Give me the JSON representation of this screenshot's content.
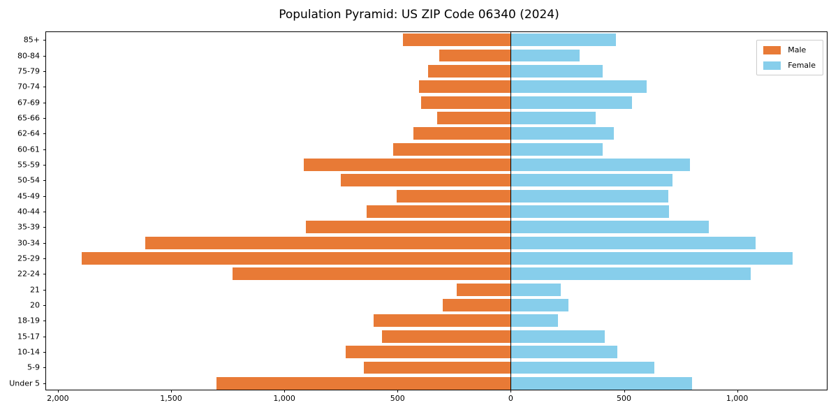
{
  "header": {
    "title": "Population Pyramid: US ZIP Code 06340 (2024)"
  },
  "legend": {
    "male_label": "Male",
    "female_label": "Female"
  },
  "colors": {
    "male": "#e87a36",
    "female": "#87ceeb",
    "axis": "#000000",
    "legend_border": "#cccccc"
  },
  "chart_data": {
    "type": "bar",
    "subtype": "population-pyramid",
    "title": "Population Pyramid: US ZIP Code 06340 (2024)",
    "xlabel": "",
    "ylabel": "",
    "grid": false,
    "zero_line": true,
    "legend_position": "upper right",
    "xlim": [
      -2052,
      1402
    ],
    "categories_top_to_bottom": [
      "85+",
      "80-84",
      "75-79",
      "70-74",
      "67-69",
      "65-66",
      "62-64",
      "60-61",
      "55-59",
      "50-54",
      "45-49",
      "40-44",
      "35-39",
      "30-34",
      "25-29",
      "22-24",
      "21",
      "20",
      "18-19",
      "15-17",
      "10-14",
      "5-9",
      "Under 5"
    ],
    "series": [
      {
        "name": "Male",
        "side": "left",
        "color": "#e87a36",
        "values": [
          475,
          315,
          365,
          405,
          395,
          325,
          430,
          520,
          915,
          750,
          505,
          635,
          905,
          1615,
          1895,
          1230,
          240,
          300,
          605,
          570,
          730,
          650,
          1300
        ]
      },
      {
        "name": "Female",
        "side": "right",
        "color": "#87ceeb",
        "values": [
          465,
          305,
          405,
          600,
          535,
          375,
          455,
          405,
          790,
          715,
          695,
          700,
          875,
          1080,
          1245,
          1060,
          220,
          255,
          210,
          415,
          470,
          635,
          800
        ]
      }
    ],
    "x_ticks": [
      {
        "value": -2000,
        "label": "2,000"
      },
      {
        "value": -1500,
        "label": "1,500"
      },
      {
        "value": -1000,
        "label": "1,000"
      },
      {
        "value": -500,
        "label": "500"
      },
      {
        "value": 0,
        "label": "0"
      },
      {
        "value": 500,
        "label": "500"
      },
      {
        "value": 1000,
        "label": "1,000"
      }
    ]
  }
}
